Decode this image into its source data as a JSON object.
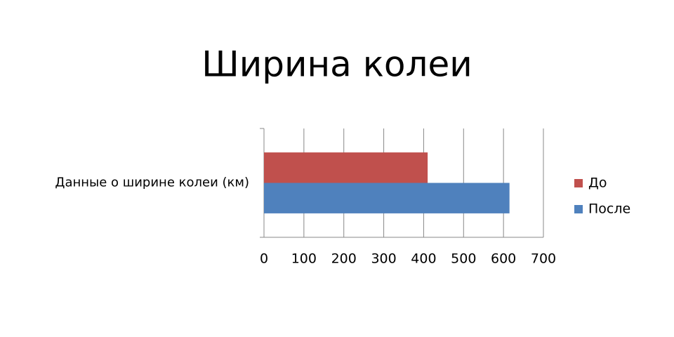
{
  "chart_data": {
    "type": "bar",
    "orientation": "horizontal",
    "title": "Ширина колеи",
    "categories": [
      "Данные о ширине колеи (км)"
    ],
    "series": [
      {
        "name": "До",
        "color": "#c0504d",
        "values": [
          410
        ]
      },
      {
        "name": "После",
        "color": "#4f81bd",
        "values": [
          615
        ]
      }
    ],
    "xlim": [
      0,
      700
    ],
    "xticks": [
      0,
      100,
      200,
      300,
      400,
      500,
      600,
      700
    ],
    "grid": true,
    "legend": "right"
  }
}
